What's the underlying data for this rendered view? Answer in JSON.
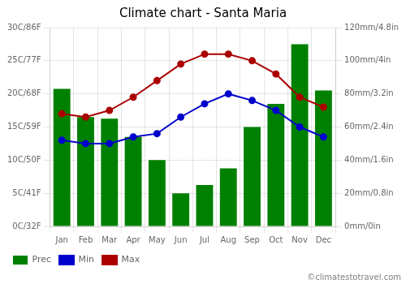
{
  "chart_data": {
    "type": "bar",
    "title": "Climate chart - Santa Maria",
    "categories": [
      "Jan",
      "Feb",
      "Mar",
      "Apr",
      "May",
      "Jun",
      "Jul",
      "Aug",
      "Sep",
      "Oct",
      "Nov",
      "Dec"
    ],
    "series": [
      {
        "name": "Prec",
        "type": "bar",
        "color": "#008000",
        "axis": "y2",
        "values": [
          83,
          66,
          65,
          54,
          40,
          20,
          25,
          35,
          60,
          74,
          110,
          82
        ]
      },
      {
        "name": "Min",
        "type": "line",
        "color": "#0000cc",
        "marker": "o",
        "line_style": "solid",
        "values": [
          13,
          12.5,
          12.5,
          13.5,
          14,
          16.5,
          18.5,
          20,
          19,
          17.5,
          15,
          13.5
        ]
      },
      {
        "name": "Max",
        "type": "line",
        "color": "#aa0000",
        "marker": "o",
        "line_style": "solid",
        "values": [
          17,
          16.5,
          17.5,
          19.5,
          22,
          24.5,
          26,
          26,
          25,
          23,
          19.5,
          18
        ]
      }
    ],
    "ylim": [
      0,
      30
    ],
    "yticks": [
      {
        "value": 0,
        "label": "0C/32F"
      },
      {
        "value": 5,
        "label": "5C/41F"
      },
      {
        "value": 10,
        "label": "10C/50F"
      },
      {
        "value": 15,
        "label": "15C/59F"
      },
      {
        "value": 20,
        "label": "20C/68F"
      },
      {
        "value": 25,
        "label": "25C/77F"
      },
      {
        "value": 30,
        "label": "30C/86F"
      }
    ],
    "y2lim": [
      0,
      120
    ],
    "y2ticks": [
      {
        "value": 0,
        "label": "0mm/0in"
      },
      {
        "value": 20,
        "label": "20mm/0.8in"
      },
      {
        "value": 40,
        "label": "40mm/1.6in"
      },
      {
        "value": 60,
        "label": "60mm/2.4in"
      },
      {
        "value": 80,
        "label": "80mm/3.2in"
      },
      {
        "value": 100,
        "label": "100mm/4in"
      },
      {
        "value": 120,
        "label": "120mm/4.8in"
      }
    ],
    "grid": true,
    "legend": "bottom",
    "annotations": [
      "©climatestotravel.com"
    ]
  }
}
